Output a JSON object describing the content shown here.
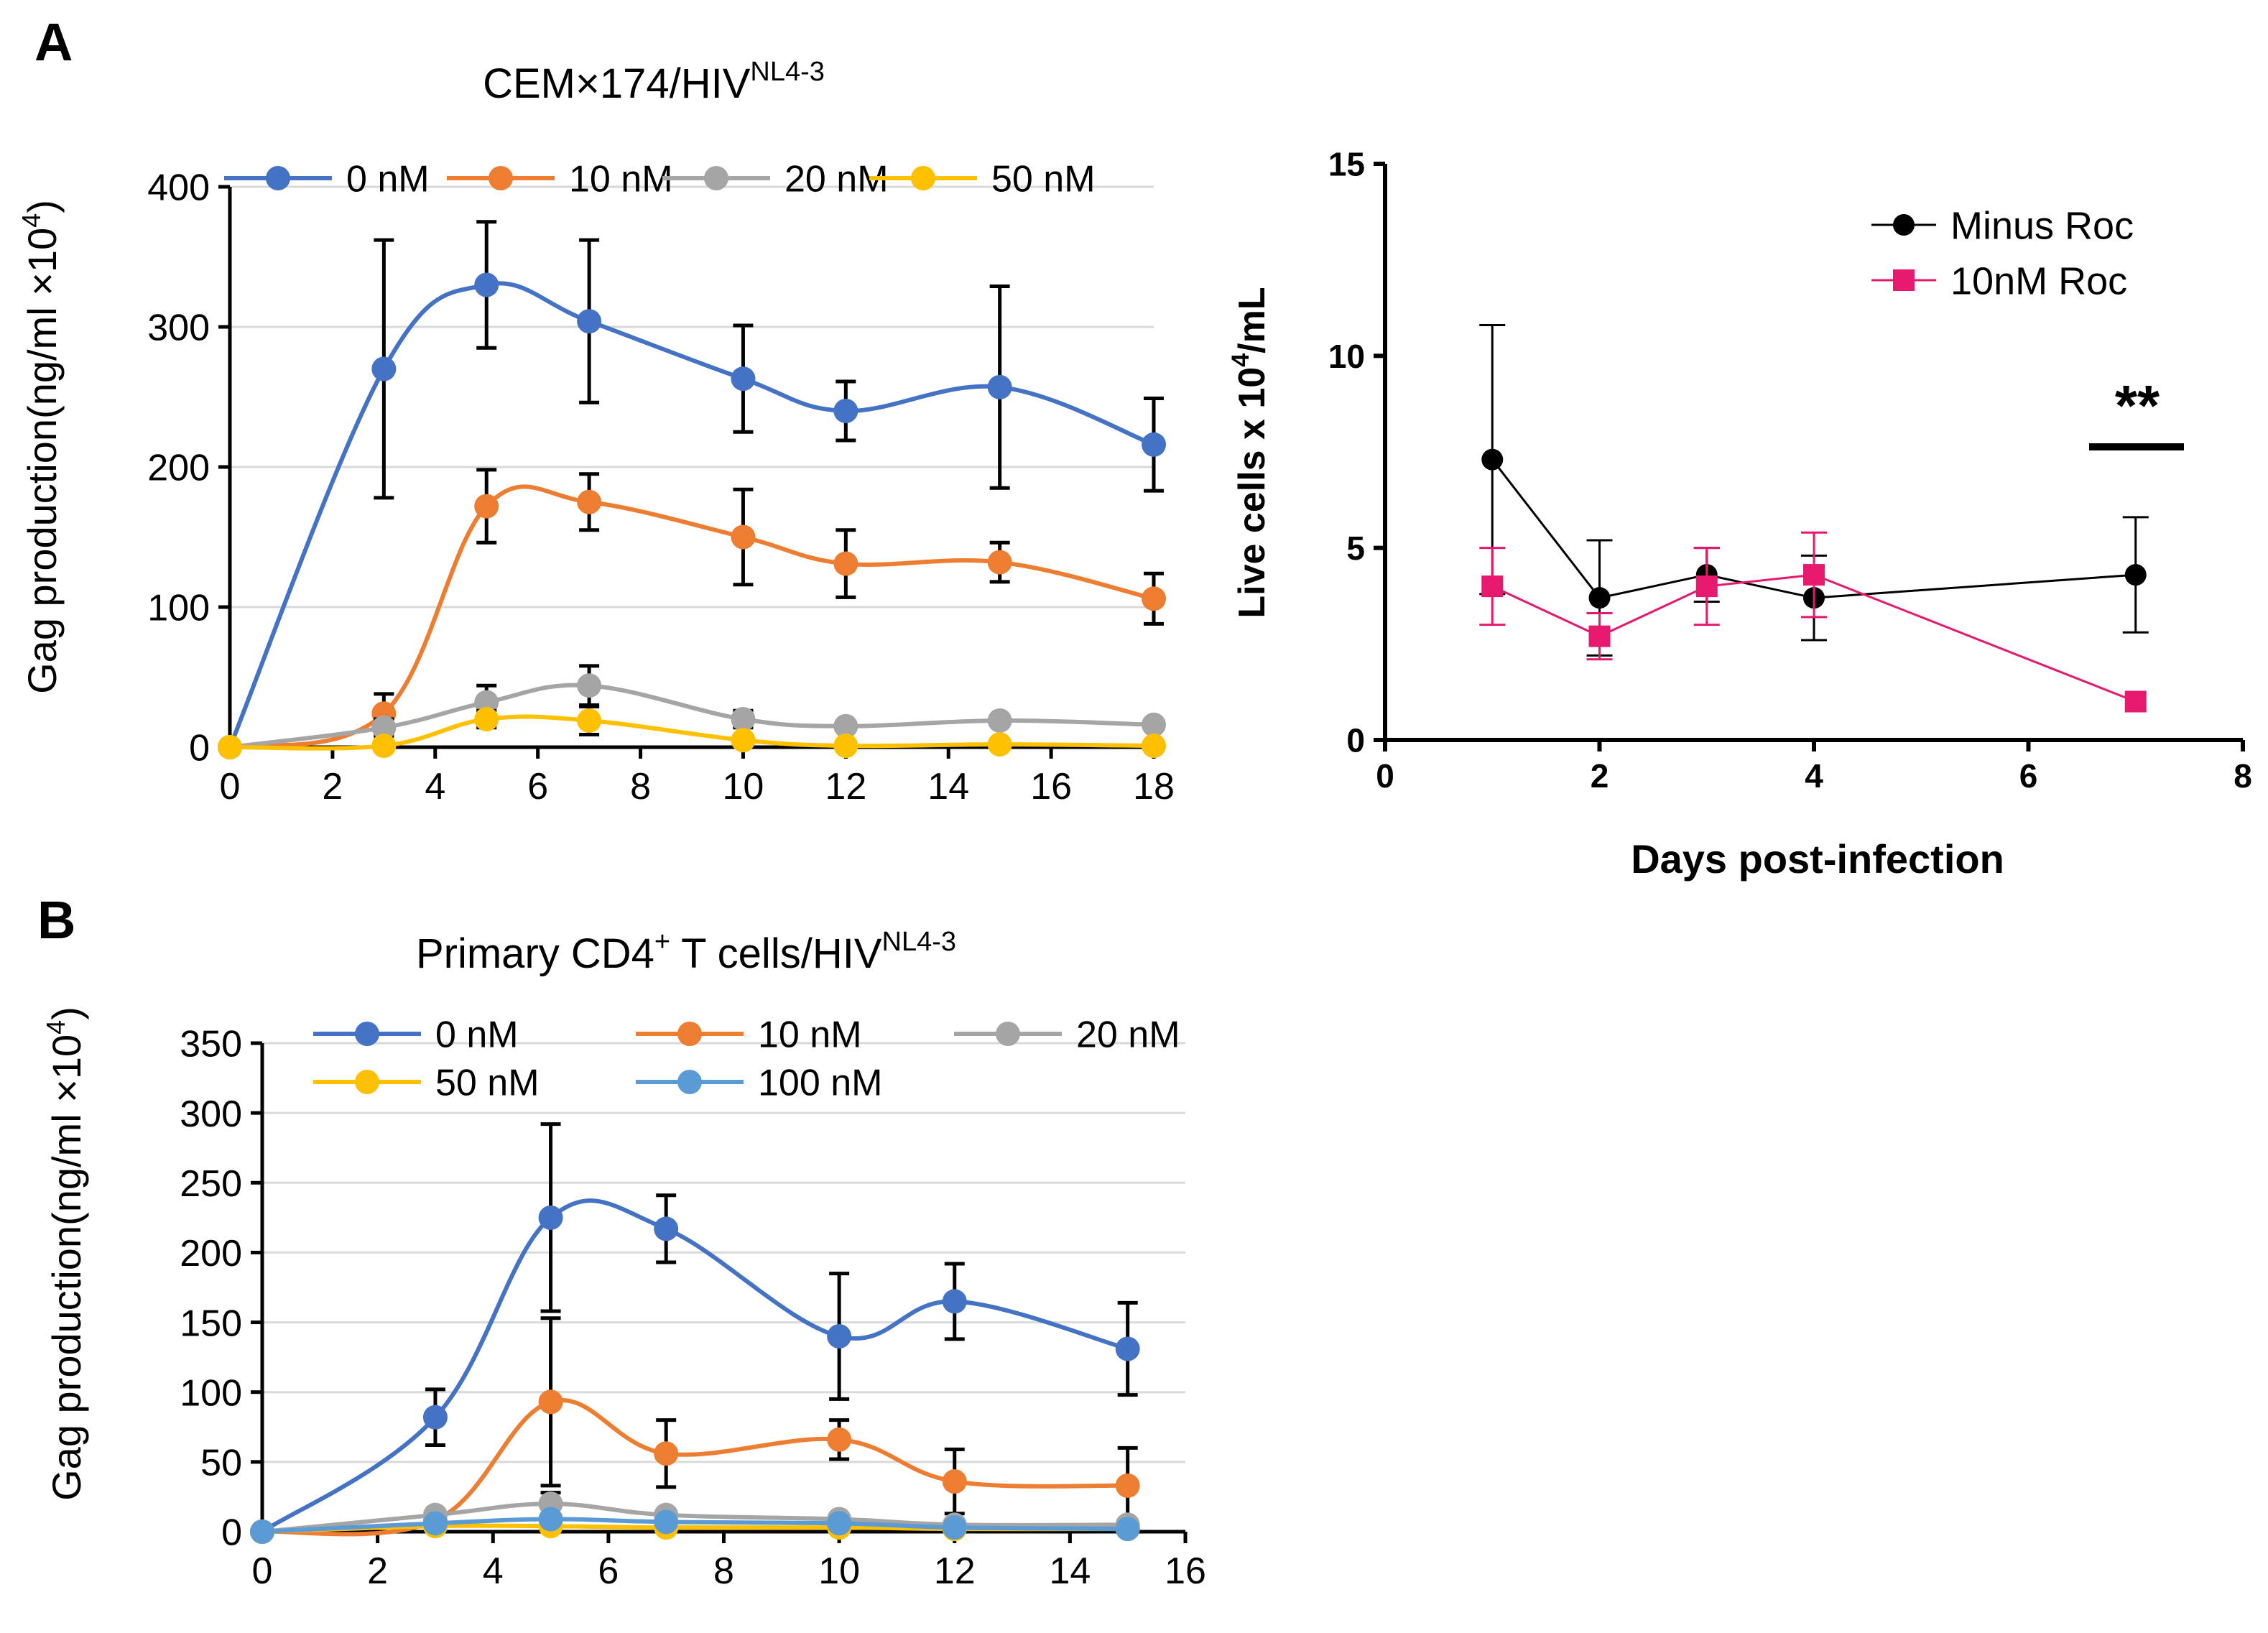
{
  "panel_labels": {
    "a": "A",
    "b": "B"
  },
  "chart_data": [
    {
      "id": "chartA1",
      "type": "line",
      "title": "CEM×174/HIV",
      "title_sup": "NL4-3",
      "xlabel": "",
      "ylabel": "Gag production(ng/ml ×10",
      "ylabel_sup": "4",
      "ylabel_tail": ")",
      "xlim": [
        0,
        18
      ],
      "ylim": [
        0,
        400
      ],
      "xticks": [
        0,
        2,
        4,
        6,
        8,
        10,
        12,
        14,
        16,
        18
      ],
      "yticks": [
        0,
        100,
        200,
        300,
        400
      ],
      "grid": true,
      "legend_position": "top",
      "series": [
        {
          "name": "0 nM",
          "color": "#4472C4",
          "x": [
            0,
            3,
            5,
            7,
            10,
            12,
            15,
            18
          ],
          "y": [
            0,
            270,
            330,
            304,
            263,
            240,
            257,
            216
          ],
          "err": [
            0,
            92,
            45,
            58,
            38,
            21,
            72,
            33
          ]
        },
        {
          "name": "10 nM",
          "color": "#ED7D31",
          "x": [
            0,
            3,
            5,
            7,
            10,
            12,
            15,
            18
          ],
          "y": [
            0,
            24,
            172,
            175,
            150,
            131,
            132,
            106
          ],
          "err": [
            0,
            14,
            26,
            20,
            34,
            24,
            14,
            18
          ]
        },
        {
          "name": "20 nM",
          "color": "#A5A5A5",
          "x": [
            0,
            3,
            5,
            7,
            10,
            12,
            15,
            18
          ],
          "y": [
            0,
            14,
            32,
            44,
            20,
            15,
            19,
            16
          ],
          "err": [
            0,
            6,
            12,
            14,
            6,
            3,
            3,
            3
          ]
        },
        {
          "name": "50 nM",
          "color": "#FFC000",
          "x": [
            0,
            3,
            5,
            7,
            10,
            12,
            15,
            18
          ],
          "y": [
            0,
            1,
            20,
            19,
            5,
            1,
            2,
            1
          ],
          "err": [
            0,
            1,
            6,
            10,
            2,
            1,
            1,
            1
          ]
        }
      ]
    },
    {
      "id": "chartA2",
      "type": "line",
      "title": "",
      "xlabel": "Days post-infection",
      "ylabel": "Live cells x 10",
      "ylabel_sup": "4",
      "ylabel_tail": "/mL",
      "xlim": [
        0,
        8
      ],
      "ylim": [
        0,
        15
      ],
      "xticks": [
        0,
        2,
        4,
        6,
        8
      ],
      "yticks": [
        0,
        5,
        10,
        15
      ],
      "grid": false,
      "legend_position": "top-right",
      "annotation": "**",
      "series": [
        {
          "name": "Minus Roc",
          "color": "#000000",
          "marker": "circle",
          "x": [
            1,
            2,
            3,
            4,
            7
          ],
          "y": [
            7.3,
            3.7,
            4.3,
            3.7,
            4.3
          ],
          "err": [
            3.5,
            1.5,
            0.7,
            1.1,
            1.5
          ]
        },
        {
          "name": "10nM Roc",
          "color": "#E6196E",
          "marker": "square",
          "x": [
            1,
            2,
            3,
            4,
            7
          ],
          "y": [
            4.0,
            2.7,
            4.0,
            4.3,
            1.0
          ],
          "err": [
            1.0,
            0.6,
            1.0,
            1.1,
            0
          ]
        }
      ]
    },
    {
      "id": "chartB",
      "type": "line",
      "title": "Primary CD4",
      "title_sup1": "+",
      "title_mid": " T cells/HIV",
      "title_sup": "NL4-3",
      "xlabel": "",
      "ylabel": "Gag production(ng/ml ×10",
      "ylabel_sup": "4",
      "ylabel_tail": ")",
      "xlim": [
        0,
        16
      ],
      "ylim": [
        0,
        350
      ],
      "xticks": [
        0,
        2,
        4,
        6,
        8,
        10,
        12,
        14,
        16
      ],
      "yticks": [
        0,
        50,
        100,
        150,
        200,
        250,
        300,
        350
      ],
      "grid": true,
      "legend_position": "top",
      "series": [
        {
          "name": "0 nM",
          "color": "#4472C4",
          "x": [
            0,
            3,
            5,
            7,
            10,
            12,
            15
          ],
          "y": [
            0,
            82,
            225,
            217,
            140,
            165,
            131
          ],
          "err": [
            0,
            20,
            67,
            24,
            45,
            27,
            33
          ]
        },
        {
          "name": "10 nM",
          "color": "#ED7D31",
          "x": [
            0,
            3,
            5,
            7,
            10,
            12,
            15
          ],
          "y": [
            0,
            8,
            93,
            56,
            66,
            36,
            33
          ],
          "err": [
            0,
            3,
            60,
            24,
            14,
            23,
            27
          ]
        },
        {
          "name": "20 nM",
          "color": "#A5A5A5",
          "x": [
            0,
            3,
            5,
            7,
            10,
            12,
            15
          ],
          "y": [
            0,
            12,
            20,
            12,
            9,
            5,
            5
          ],
          "err": [
            0,
            3,
            8,
            3,
            2,
            1,
            1
          ]
        },
        {
          "name": "50 nM",
          "color": "#FFC000",
          "x": [
            0,
            3,
            5,
            7,
            10,
            12,
            15
          ],
          "y": [
            0,
            4,
            4,
            3,
            3,
            2,
            2
          ],
          "err": [
            0,
            1,
            1,
            1,
            1,
            1,
            1
          ]
        },
        {
          "name": "100 nM",
          "color": "#5B9BD5",
          "x": [
            0,
            3,
            5,
            7,
            10,
            12,
            15
          ],
          "y": [
            0,
            6,
            9,
            7,
            6,
            3,
            2
          ],
          "err": [
            0,
            1,
            2,
            1,
            1,
            1,
            1
          ]
        }
      ]
    }
  ]
}
